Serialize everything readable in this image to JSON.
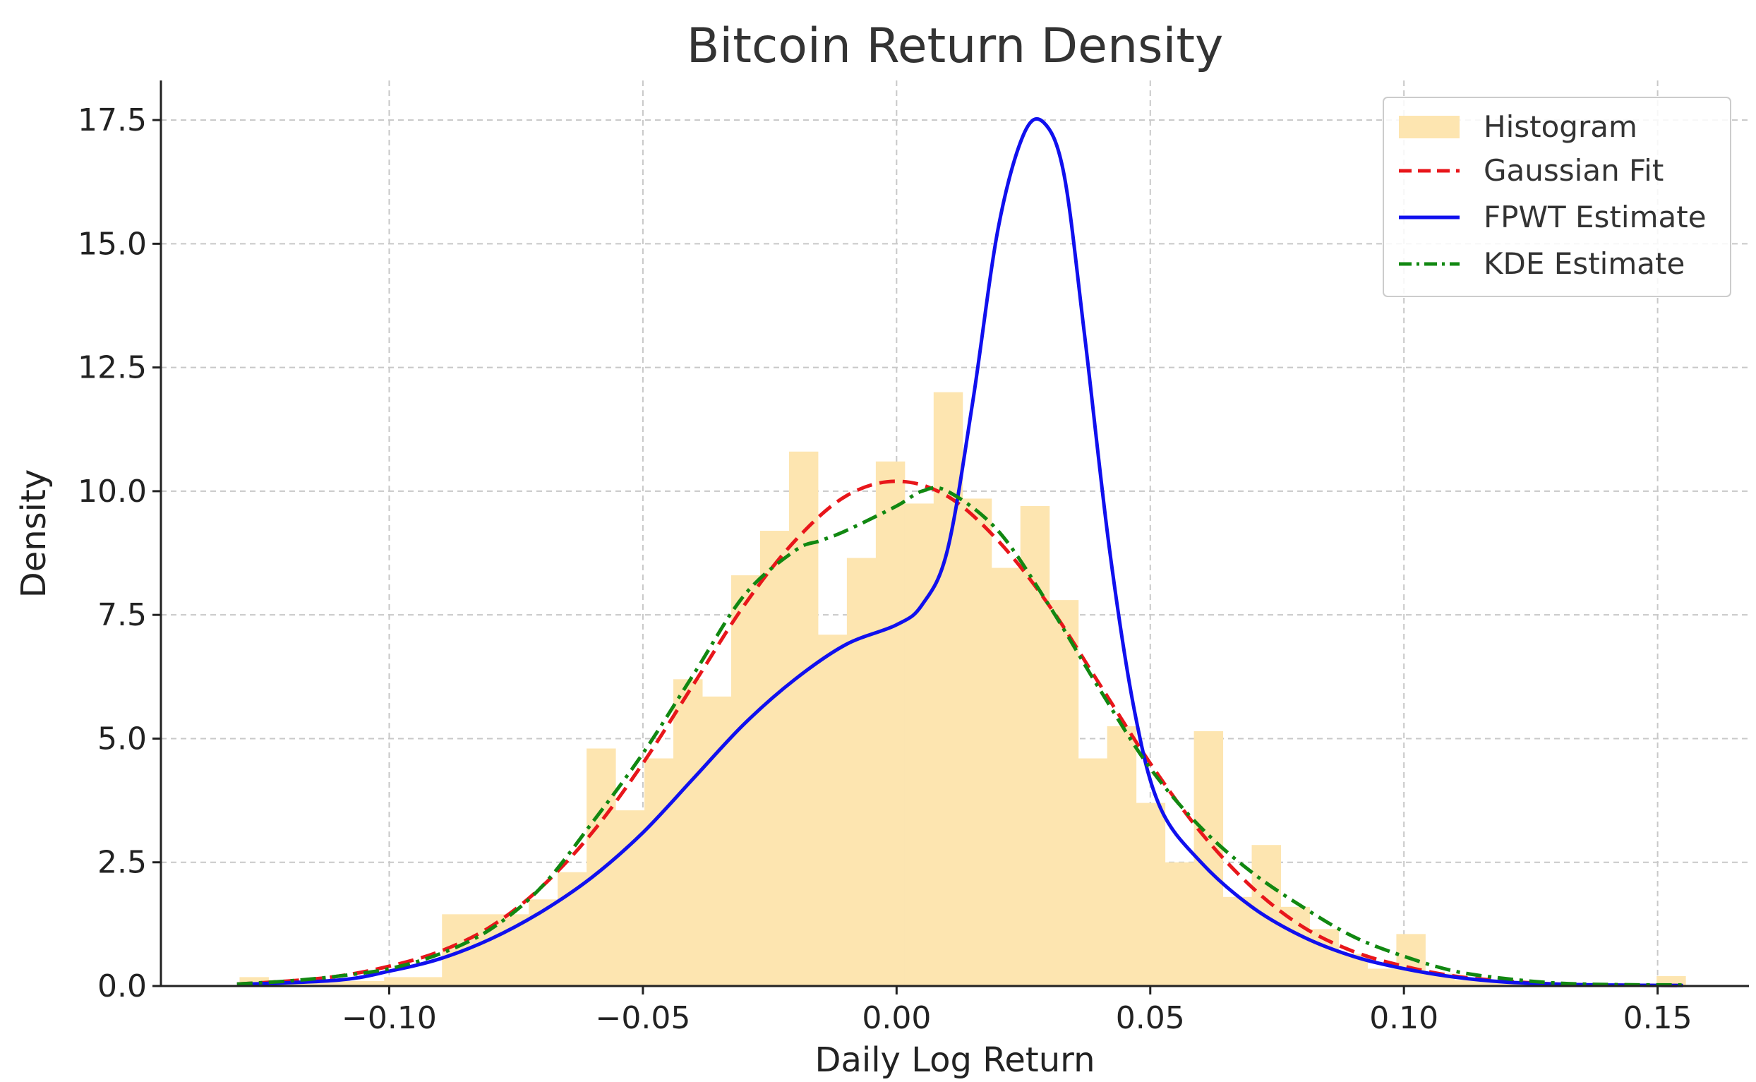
{
  "chart_data": {
    "type": "bar",
    "title": "Bitcoin Return Density",
    "xlabel": "Daily Log Return",
    "ylabel": "Density",
    "xlim": [
      -0.145,
      0.168
    ],
    "ylim": [
      0,
      18.3
    ],
    "x_ticks": [
      -0.1,
      -0.05,
      0.0,
      0.05,
      0.1,
      0.15
    ],
    "x_tick_labels": [
      "−0.10",
      "−0.05",
      "0.00",
      "0.05",
      "0.10",
      "0.15"
    ],
    "y_ticks": [
      0,
      2.5,
      5,
      7.5,
      10,
      12.5,
      15,
      17.5
    ],
    "y_tick_labels": [
      "0.0",
      "2.5",
      "5.0",
      "7.5",
      "10.0",
      "12.5",
      "15.0",
      "17.5"
    ],
    "grid": true,
    "legend_position": "top-right",
    "histogram": {
      "name": "Histogram",
      "color": "#fde5b0",
      "bin_edges": [
        -0.1295,
        -0.1238,
        -0.1181,
        -0.1124,
        -0.1067,
        -0.101,
        -0.0953,
        -0.0896,
        -0.0839,
        -0.0782,
        -0.0725,
        -0.0668,
        -0.0611,
        -0.0554,
        -0.0497,
        -0.044,
        -0.0383,
        -0.0326,
        -0.0269,
        -0.0212,
        -0.0155,
        -0.0098,
        -0.0041,
        0.0016,
        0.0073,
        0.013,
        0.0187,
        0.0244,
        0.0301,
        0.0358,
        0.0415,
        0.0472,
        0.0529,
        0.0586,
        0.0643,
        0.07,
        0.0757,
        0.0814,
        0.0871,
        0.0928,
        0.0985,
        0.1042,
        0.1099,
        0.1156,
        0.1213,
        0.127,
        0.1327,
        0.1384,
        0.1441,
        0.1498,
        0.1555
      ],
      "values": [
        0.18,
        0.1,
        0.1,
        0.1,
        0.1,
        0.18,
        0.18,
        1.45,
        1.45,
        1.45,
        1.75,
        2.3,
        4.8,
        3.55,
        4.6,
        6.2,
        5.85,
        8.3,
        9.2,
        10.8,
        7.1,
        8.65,
        10.6,
        9.75,
        12.0,
        9.85,
        8.45,
        9.7,
        7.8,
        4.6,
        5.25,
        3.7,
        2.5,
        5.15,
        1.8,
        2.85,
        1.6,
        1.15,
        0.65,
        0.35,
        1.05,
        0.25,
        0.12,
        0.08,
        0.05,
        0.05,
        0.03,
        0.03,
        0.03,
        0.2
      ]
    },
    "series": [
      {
        "name": "Gaussian Fit",
        "color": "#e8161b",
        "style": "dashed",
        "x": [
          -0.13,
          -0.12,
          -0.11,
          -0.1,
          -0.09,
          -0.08,
          -0.07,
          -0.06,
          -0.05,
          -0.04,
          -0.03,
          -0.02,
          -0.01,
          0.0,
          0.01,
          0.02,
          0.03,
          0.04,
          0.05,
          0.06,
          0.07,
          0.08,
          0.09,
          0.1,
          0.11,
          0.12,
          0.13,
          0.14,
          0.155
        ],
        "y": [
          0.04,
          0.1,
          0.2,
          0.4,
          0.7,
          1.2,
          2.0,
          3.1,
          4.5,
          6.1,
          7.7,
          9.0,
          9.9,
          10.2,
          9.9,
          9.0,
          7.7,
          6.1,
          4.5,
          3.1,
          2.0,
          1.2,
          0.7,
          0.4,
          0.2,
          0.1,
          0.04,
          0.02,
          0.01
        ]
      },
      {
        "name": "FPWT Estimate",
        "color": "#1010ee",
        "style": "solid",
        "x": [
          -0.13,
          -0.11,
          -0.1,
          -0.09,
          -0.08,
          -0.07,
          -0.06,
          -0.05,
          -0.04,
          -0.03,
          -0.02,
          -0.01,
          0.0,
          0.005,
          0.01,
          0.015,
          0.02,
          0.025,
          0.029,
          0.033,
          0.037,
          0.042,
          0.047,
          0.052,
          0.06,
          0.07,
          0.08,
          0.09,
          0.1,
          0.11,
          0.12,
          0.13,
          0.14,
          0.155
        ],
        "y": [
          0.03,
          0.12,
          0.3,
          0.55,
          0.95,
          1.5,
          2.2,
          3.1,
          4.2,
          5.3,
          6.2,
          6.9,
          7.3,
          7.7,
          8.8,
          11.8,
          15.3,
          17.2,
          17.45,
          16.4,
          13.2,
          8.8,
          5.5,
          3.6,
          2.5,
          1.6,
          1.0,
          0.6,
          0.35,
          0.18,
          0.08,
          0.04,
          0.02,
          0.01
        ]
      },
      {
        "name": "KDE Estimate",
        "color": "#118811",
        "style": "dashdot",
        "x": [
          -0.13,
          -0.12,
          -0.11,
          -0.1,
          -0.09,
          -0.08,
          -0.07,
          -0.06,
          -0.05,
          -0.04,
          -0.03,
          -0.02,
          -0.015,
          -0.01,
          0.0,
          0.005,
          0.01,
          0.02,
          0.03,
          0.04,
          0.05,
          0.06,
          0.07,
          0.08,
          0.09,
          0.1,
          0.11,
          0.12,
          0.13,
          0.14,
          0.155
        ],
        "y": [
          0.04,
          0.1,
          0.2,
          0.35,
          0.65,
          1.15,
          2.0,
          3.3,
          4.7,
          6.3,
          7.9,
          8.8,
          9.0,
          9.2,
          9.7,
          10.0,
          10.0,
          9.2,
          7.7,
          6.0,
          4.4,
          3.2,
          2.3,
          1.6,
          1.0,
          0.6,
          0.3,
          0.15,
          0.06,
          0.03,
          0.02
        ]
      }
    ]
  }
}
